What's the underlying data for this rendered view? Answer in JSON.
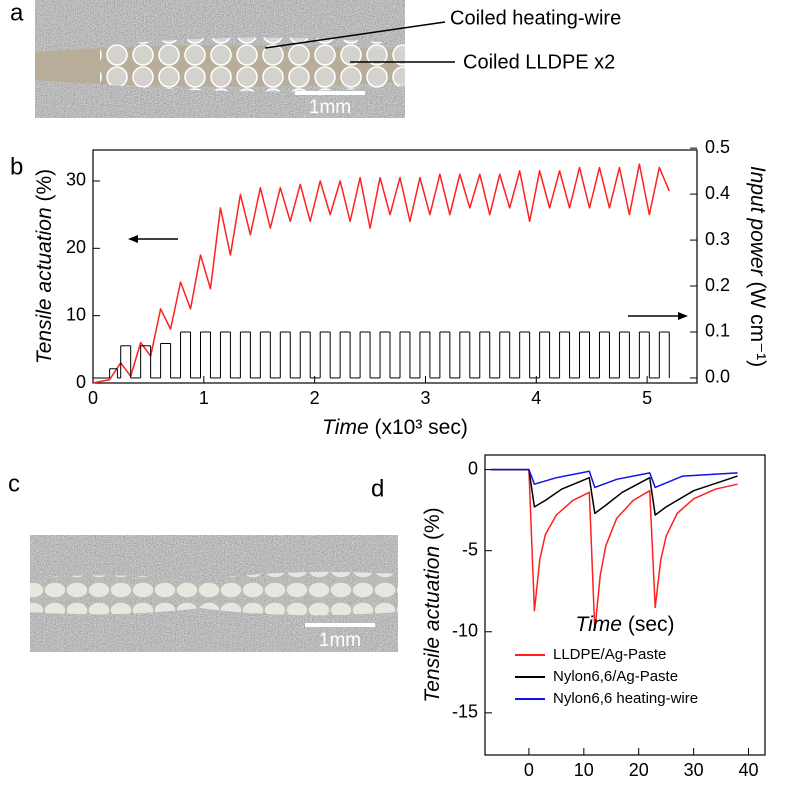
{
  "panel_labels": [
    "a",
    "b",
    "c",
    "d"
  ],
  "annotations": [
    "Coiled heating-wire",
    "Coiled LLDPE x2"
  ],
  "scale_bars": [
    "1mm",
    "1mm"
  ],
  "chart_data": [
    {
      "type": "line",
      "x_label": "Time",
      "x_unit": "(x10³ sec)",
      "y_label": "Tensile actuation",
      "y_unit": "(%)",
      "y2_label": "Input power",
      "y2_unit": "(W cm⁻¹)",
      "xlim": [
        0,
        5.45
      ],
      "xticks": [
        0,
        1,
        2,
        3,
        4,
        5
      ],
      "ylim": [
        0,
        34.6
      ],
      "yticks": [
        0,
        10,
        20,
        30
      ],
      "y2lim": [
        -0.011,
        0.496
      ],
      "y2ticks": [
        {
          "value": 0,
          "label": "0.0"
        },
        0.1,
        0.2,
        0.3,
        0.4,
        0.5
      ],
      "series": [
        {
          "color": "#ff2020",
          "x": [
            0,
            0.15,
            0.25,
            0.34,
            0.43,
            0.52,
            0.61,
            0.7,
            0.79,
            0.88,
            0.97,
            1.06,
            1.15,
            1.24,
            1.33,
            1.42,
            1.51,
            1.6,
            1.69,
            1.78,
            1.87,
            1.96,
            2.05,
            2.14,
            2.23,
            2.32,
            2.41,
            2.5,
            2.59,
            2.68,
            2.77,
            2.86,
            2.95,
            3.04,
            3.13,
            3.22,
            3.31,
            3.4,
            3.49,
            3.58,
            3.67,
            3.76,
            3.85,
            3.94,
            4.03,
            4.12,
            4.21,
            4.3,
            4.39,
            4.48,
            4.57,
            4.66,
            4.75,
            4.84,
            4.93,
            5.02,
            5.11,
            5.2
          ],
          "values": [
            0,
            0.5,
            3,
            1,
            6,
            4,
            11,
            8,
            15,
            11,
            19,
            14,
            26,
            19,
            28,
            22,
            29,
            23,
            29,
            24,
            29.5,
            24,
            30,
            25,
            30,
            24,
            30.5,
            23,
            30.5,
            25,
            30.5,
            24,
            30.5,
            25,
            31,
            25,
            31,
            26,
            31,
            25,
            31,
            26,
            31.5,
            24,
            31.5,
            26,
            31.5,
            26,
            32,
            26,
            32,
            26,
            32,
            25,
            32.5,
            25,
            32,
            28.5
          ]
        },
        {
          "color": "#000000",
          "axis": "y2",
          "step": true,
          "x": [
            0,
            0.15,
            0.22,
            0.25,
            0.34,
            0.43,
            0.52,
            0.61,
            0.7,
            0.79,
            0.88,
            0.97,
            1.06,
            1.15,
            1.24,
            1.33,
            1.42,
            1.51,
            1.6,
            1.69,
            1.78,
            1.87,
            1.96,
            2.05,
            2.14,
            2.23,
            2.32,
            2.41,
            2.5,
            2.59,
            2.68,
            2.77,
            2.86,
            2.95,
            3.04,
            3.13,
            3.22,
            3.31,
            3.4,
            3.49,
            3.58,
            3.67,
            3.76,
            3.85,
            3.94,
            4.03,
            4.12,
            4.21,
            4.3,
            4.39,
            4.48,
            4.57,
            4.66,
            4.75,
            4.84,
            4.93,
            5.02,
            5.11,
            5.2
          ],
          "values": [
            0,
            0.02,
            0,
            0.07,
            0,
            0.07,
            0,
            0.075,
            0,
            0.1,
            0,
            0.1,
            0,
            0.1,
            0,
            0.1,
            0,
            0.1,
            0,
            0.1,
            0,
            0.1,
            0,
            0.1,
            0,
            0.1,
            0,
            0.1,
            0,
            0.1,
            0,
            0.1,
            0,
            0.1,
            0,
            0.1,
            0,
            0.1,
            0,
            0.1,
            0,
            0.1,
            0,
            0.1,
            0,
            0.1,
            0,
            0.1,
            0,
            0.1,
            0,
            0.1,
            0,
            0.1,
            0,
            0.1,
            0,
            0.1,
            0
          ]
        }
      ]
    },
    {
      "type": "line",
      "x_label": "Time",
      "x_unit": "(sec)",
      "y_label": "Tensile actuation",
      "y_unit": "(%)",
      "xlim": [
        -8,
        43
      ],
      "xticks": [
        0,
        10,
        20,
        30,
        40
      ],
      "ylim": [
        -17.6,
        0.9
      ],
      "yticks": [
        0,
        -5,
        -10,
        -15
      ],
      "legend": "lower center",
      "series": [
        {
          "name": "LLDPE/Ag-Paste",
          "color": "#ff2020",
          "x": [
            -7,
            0,
            1,
            2,
            3,
            5,
            8,
            11,
            12,
            13,
            14,
            16,
            19,
            22,
            23,
            24,
            25,
            27,
            30,
            34,
            38
          ],
          "values": [
            0,
            0,
            -8.7,
            -5.5,
            -4,
            -2.8,
            -1.9,
            -1.4,
            -9.9,
            -6.5,
            -4.7,
            -3,
            -1.9,
            -1.3,
            -8.5,
            -5.6,
            -4.1,
            -2.7,
            -1.8,
            -1.2,
            -0.9
          ]
        },
        {
          "name": "Nylon6,6/Ag-Paste",
          "color": "#000000",
          "x": [
            -7,
            0,
            1,
            3,
            6,
            11,
            12,
            14,
            17,
            22,
            23,
            25,
            30,
            38
          ],
          "values": [
            0,
            0,
            -2.3,
            -1.9,
            -1.2,
            -0.5,
            -2.7,
            -2.2,
            -1.4,
            -0.5,
            -2.8,
            -2.3,
            -1.3,
            -0.4
          ]
        },
        {
          "name": "Nylon6,6 heating-wire",
          "color": "#1010ee",
          "x": [
            -7,
            0,
            1,
            5,
            11,
            12,
            16,
            22,
            23,
            28,
            38
          ],
          "values": [
            0,
            0,
            -0.9,
            -0.5,
            -0.1,
            -1.1,
            -0.6,
            -0.2,
            -1.1,
            -0.4,
            -0.2
          ]
        }
      ]
    }
  ]
}
